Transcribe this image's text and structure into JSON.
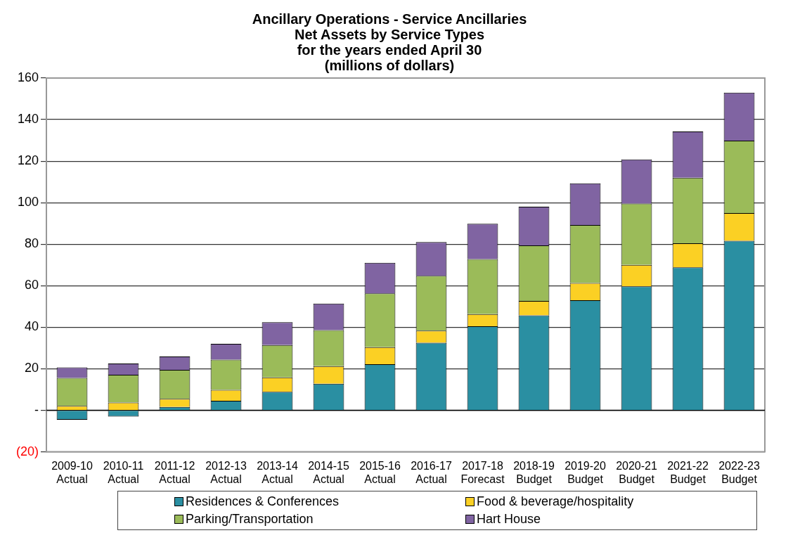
{
  "chart_data": {
    "type": "bar",
    "title": "Ancillary Operations - Service Ancillaries\nNet Assets by Service Types\nfor the years ended April 30\n(millions of dollars)",
    "categories": [
      "2009-10\nActual",
      "2010-11\nActual",
      "2011-12\nActual",
      "2012-13\nActual",
      "2013-14\nActual",
      "2014-15\nActual",
      "2015-16\nActual",
      "2016-17\nActual",
      "2017-18\nForecast",
      "2018-19\nBudget",
      "2019-20\nBudget",
      "2020-21\nBudget",
      "2021-22\nBudget",
      "2022-23\nBudget"
    ],
    "stacked": true,
    "series": [
      {
        "name": "Residences & Conferences",
        "color": "#2a8fa2",
        "values": [
          -4.6,
          -3.0,
          1.6,
          4.6,
          8.9,
          12.8,
          22.2,
          32.5,
          40.5,
          45.7,
          53.0,
          59.7,
          68.8,
          81.6
        ]
      },
      {
        "name": "Food & beverage/hospitality",
        "color": "#fbd024",
        "values": [
          2.1,
          3.7,
          3.9,
          5.2,
          6.9,
          8.5,
          8.2,
          5.9,
          5.8,
          7.0,
          8.3,
          10.3,
          11.6,
          13.4
        ]
      },
      {
        "name": "Parking/Transportation",
        "color": "#9bbb59",
        "values": [
          13.5,
          13.4,
          14.0,
          14.6,
          15.6,
          17.3,
          25.9,
          26.4,
          26.5,
          26.7,
          27.9,
          29.6,
          31.6,
          34.9
        ]
      },
      {
        "name": "Hart House",
        "color": "#8064a2",
        "values": [
          5.1,
          5.4,
          6.4,
          7.6,
          11.0,
          12.8,
          14.7,
          16.2,
          17.0,
          18.6,
          20.1,
          21.2,
          22.3,
          23.1
        ]
      }
    ],
    "ylim": [
      -20,
      160
    ],
    "yticks": [
      {
        "value": -20,
        "label": "(20)"
      },
      {
        "value": 0,
        "label": "-"
      },
      20,
      40,
      60,
      80,
      100,
      120,
      140,
      160
    ],
    "grid": "y",
    "legend": "bottom"
  }
}
